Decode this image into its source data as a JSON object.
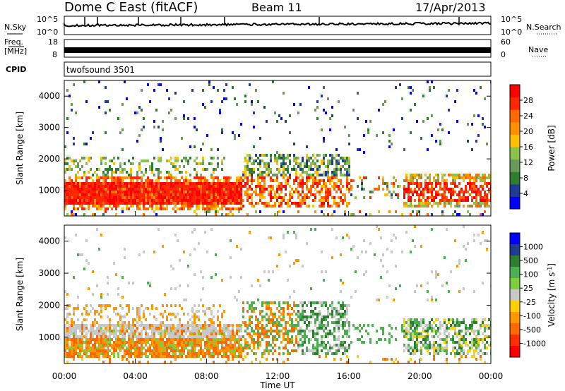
{
  "header": {
    "station": "Dome C East (fitACF)",
    "beam": "Beam 11",
    "date": "17/Apr/2013"
  },
  "top_panels": {
    "nsky": {
      "label": "N.Sky",
      "ticks_left": [
        "10^5",
        "10^0"
      ],
      "ticks_right": [
        "10^5",
        "10^0"
      ],
      "right_label": "N.Search"
    },
    "freq": {
      "label_line1": "Freq.",
      "label_line2": "[MHz]",
      "ticks_left": [
        "18",
        "8"
      ],
      "ticks_right": [
        "60",
        "0"
      ],
      "right_label": "Nave"
    },
    "cpid": {
      "label": "CPID",
      "value": "twofsound 3501"
    }
  },
  "colors": {
    "power_scale": [
      "#0000ff",
      "#1e3c96",
      "#2e7d32",
      "#6a9a5a",
      "#8bc34a",
      "#ffc000",
      "#ff9000",
      "#ff6a00",
      "#ff2800",
      "#ff0000"
    ],
    "velocity_scale": [
      "#0000ff",
      "#1e3c96",
      "#2e7d32",
      "#4caf50",
      "#7ccf3a",
      "#c8c8c8",
      "#ffd000",
      "#ff9800",
      "#ff6a00",
      "#ff3000",
      "#ff0000"
    ]
  },
  "chart_data": [
    {
      "type": "heatmap",
      "panel": "power",
      "ylabel": "Slant Range [km]",
      "ylim": [
        180,
        4500
      ],
      "yticks": [
        "1000",
        "2000",
        "3000",
        "4000"
      ],
      "xlim": [
        "00:00",
        "00:00"
      ],
      "colorbar": {
        "label": "Power [dB]",
        "ticks": [
          "4",
          "8",
          "12",
          "16",
          "20",
          "24",
          "28"
        ],
        "range": [
          0,
          31
        ]
      },
      "regions_note": "Strong echoes (>20 dB) concentrated 500-1500 km from 00:00 to 10:00 UT and 20:00-24:00 UT; patchy 1000-2000 km 10:00-16:00; weak scatter up to 4500 km."
    },
    {
      "type": "heatmap",
      "panel": "velocity",
      "ylabel": "Slant Range [km]",
      "ylim": [
        180,
        4500
      ],
      "yticks": [
        "1000",
        "2000",
        "3000",
        "4000"
      ],
      "xlim": [
        "00:00",
        "00:00"
      ],
      "xlabel": "Time UT",
      "xticks": [
        "00:00",
        "04:00",
        "08:00",
        "12:00",
        "16:00",
        "20:00",
        "00:00"
      ],
      "colorbar": {
        "label": "Velocity [m s^-1]",
        "ticks": [
          "1000",
          "500",
          "100",
          "25",
          "-25",
          "-100",
          "-500",
          "-1000"
        ]
      },
      "regions_note": "Negative velocities (orange, -100 to -500 m/s) dominate 500-1500 km before 10:00 UT; ground scatter (grey) near 1000-1500 km; positive velocities (green, 100-500 m/s) 12:00-24:00 UT."
    }
  ]
}
